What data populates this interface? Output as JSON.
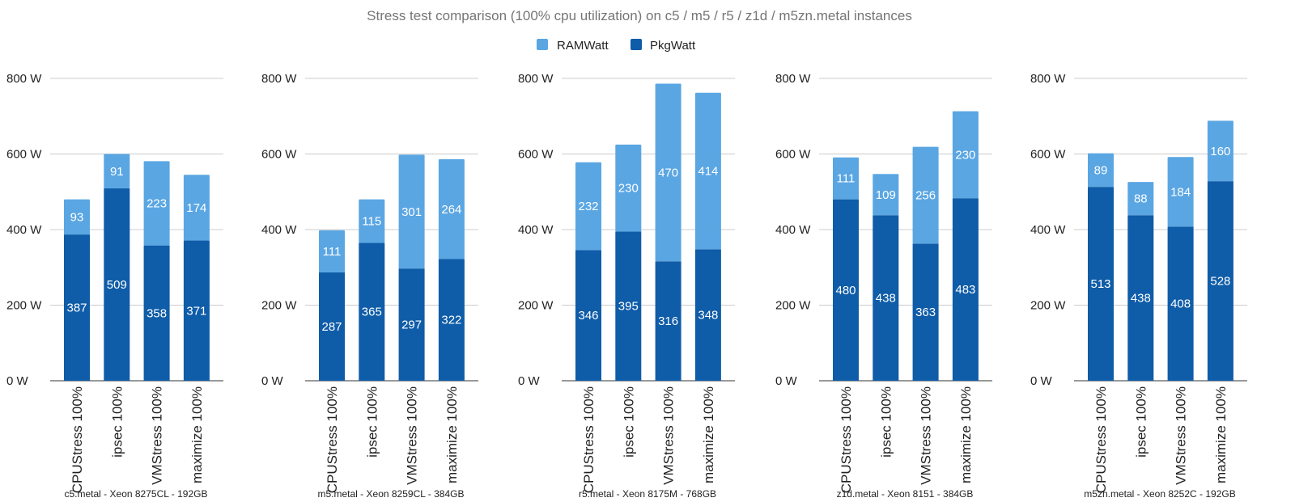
{
  "chart_data": [
    {
      "type": "bar",
      "stacked": true,
      "title": "Stress test comparison (100% cpu utilization)  on c5 / m5 / r5 / z1d / m5zn.metal instances",
      "legend": {
        "position": "top",
        "entries": [
          "RAMWatt",
          "PkgWatt"
        ]
      },
      "colors": {
        "RAMWatt": "#5aa6e3",
        "PkgWatt": "#0f5ca8"
      },
      "ylim": [
        0,
        800
      ],
      "yticks": [
        "0 W",
        "200 W",
        "400 W",
        "600 W",
        "800 W"
      ],
      "ytick_values": [
        0,
        200,
        400,
        600,
        800
      ],
      "grid": true,
      "panels": [
        {
          "xlabel": "c5.metal - Xeon 8275CL - 192GB",
          "categories": [
            "CPUStress 100%",
            "ipsec 100%",
            "VMStress 100%",
            "maximize 100%"
          ],
          "series": [
            {
              "name": "PkgWatt",
              "values": [
                387,
                509,
                358,
                371
              ]
            },
            {
              "name": "RAMWatt",
              "values": [
                93,
                91,
                223,
                174
              ]
            }
          ]
        },
        {
          "xlabel": "m5.metal - Xeon 8259CL - 384GB",
          "categories": [
            "CPUStress 100%",
            "ipsec 100%",
            "VMStress 100%",
            "maximize 100%"
          ],
          "series": [
            {
              "name": "PkgWatt",
              "values": [
                287,
                365,
                297,
                322
              ]
            },
            {
              "name": "RAMWatt",
              "values": [
                111,
                115,
                301,
                264
              ]
            }
          ]
        },
        {
          "xlabel": "r5.metal - Xeon 8175M - 768GB",
          "categories": [
            "CPUStress 100%",
            "ipsec 100%",
            "VMStress 100%",
            "maximize 100%"
          ],
          "series": [
            {
              "name": "PkgWatt",
              "values": [
                346,
                395,
                316,
                348
              ]
            },
            {
              "name": "RAMWatt",
              "values": [
                232,
                230,
                470,
                414
              ]
            }
          ]
        },
        {
          "xlabel": "z1d.metal - Xeon 8151 - 384GB",
          "categories": [
            "CPUStress 100%",
            "ipsec 100%",
            "VMStress 100%",
            "maximize 100%"
          ],
          "series": [
            {
              "name": "PkgWatt",
              "values": [
                480,
                438,
                363,
                483
              ]
            },
            {
              "name": "RAMWatt",
              "values": [
                111,
                109,
                256,
                230
              ]
            }
          ]
        },
        {
          "xlabel": "m5zn.metal - Xeon 8252C - 192GB",
          "categories": [
            "CPUStress 100%",
            "ipsec 100%",
            "VMStress 100%",
            "maximize 100%"
          ],
          "series": [
            {
              "name": "PkgWatt",
              "values": [
                513,
                438,
                408,
                528
              ]
            },
            {
              "name": "RAMWatt",
              "values": [
                89,
                88,
                184,
                160
              ]
            }
          ]
        }
      ]
    }
  ]
}
